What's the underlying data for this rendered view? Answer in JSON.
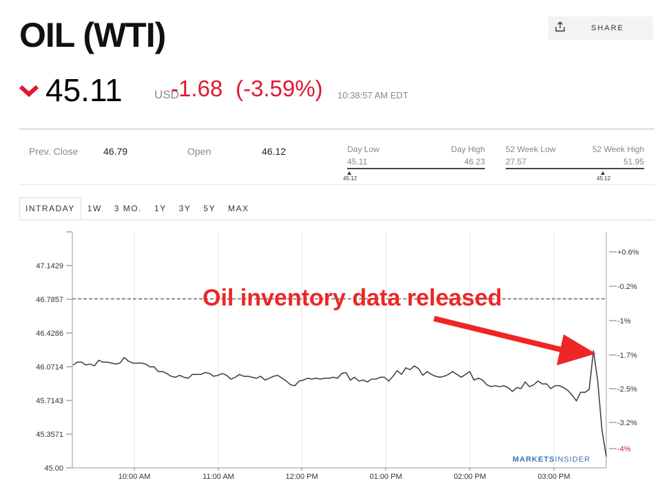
{
  "header": {
    "title": "OIL (WTI)",
    "share_label": "SHARE",
    "share_icon": "share-icon"
  },
  "quote": {
    "direction_icon": "chevron-down-icon",
    "price": "45.11",
    "currency": "USD",
    "change": "-1.68",
    "change_pct": "(-3.59%)",
    "time": "10:38:57 AM EDT",
    "down_color": "#e0182e"
  },
  "stats": {
    "prev_close_label": "Prev. Close",
    "prev_close": "46.79",
    "open_label": "Open",
    "open": "46.12",
    "day_low_label": "Day Low",
    "day_low": "45.11",
    "day_high_label": "Day High",
    "day_high": "46.23",
    "day_marker": "45.12",
    "wk52_low_label": "52 Week Low",
    "wk52_low": "27.57",
    "wk52_high_label": "52 Week High",
    "wk52_high": "51.95",
    "wk52_marker": "45.12"
  },
  "tabs": [
    "INTRADAY",
    "1W",
    "3 MO.",
    "1Y",
    "3Y",
    "5Y",
    "MAX"
  ],
  "annotation": "Oil inventory data released",
  "brand": {
    "part1": "MARKETS",
    "part2": "INSIDER"
  },
  "chart_data": {
    "type": "line",
    "reference_line": 46.79,
    "ylim": [
      45.0,
      47.5
    ],
    "y_ticks": [
      "45.00",
      "45.3571",
      "45.7143",
      "46.0714",
      "46.4286",
      "46.7857",
      "47.1429"
    ],
    "y_tick_values": [
      45.0,
      45.3571,
      45.7143,
      46.0714,
      46.4286,
      46.7857,
      47.1429
    ],
    "right_ticks": [
      "+0.6%",
      "-0.2%",
      "-1%",
      "-1.7%",
      "-2.5%",
      "-3.2%",
      "-4%"
    ],
    "x_ticks": [
      "10:00 AM",
      "11:00 AM",
      "12:00 PM",
      "01:00 PM",
      "02:00 PM",
      "03:00 PM"
    ],
    "series": [
      {
        "values": [
          46.09,
          46.12,
          46.12,
          46.09,
          46.1,
          46.08,
          46.14,
          46.12,
          46.12,
          46.11,
          46.1,
          46.11,
          46.17,
          46.13,
          46.11,
          46.11,
          46.11,
          46.1,
          46.07,
          46.07,
          46.02,
          46.02,
          46.0,
          45.97,
          45.96,
          45.98,
          45.96,
          45.95,
          45.99,
          45.99,
          45.99,
          46.01,
          46.0,
          45.97,
          45.98,
          46.0,
          45.98,
          45.94,
          45.96,
          45.99,
          45.97,
          45.97,
          45.96,
          45.95,
          45.97,
          45.93,
          45.95,
          45.97,
          45.98,
          45.95,
          45.92,
          45.88,
          45.87,
          45.92,
          45.93,
          45.95,
          45.94,
          45.95,
          45.94,
          45.95,
          45.95,
          45.96,
          45.95,
          46.0,
          46.01,
          45.93,
          45.96,
          45.92,
          45.93,
          45.91,
          45.94,
          45.94,
          45.96,
          45.96,
          45.92,
          45.97,
          46.03,
          45.99,
          46.06,
          46.04,
          46.08,
          46.05,
          45.98,
          46.02,
          45.99,
          45.97,
          45.96,
          45.97,
          45.99,
          46.02,
          45.99,
          45.96,
          45.99,
          46.02,
          45.93,
          45.95,
          45.93,
          45.88,
          45.86,
          45.87,
          45.86,
          45.87,
          45.85,
          45.81,
          45.85,
          45.84,
          45.91,
          45.86,
          45.88,
          45.92,
          45.89,
          45.89,
          45.84,
          45.87,
          45.87,
          45.85,
          45.82,
          45.77,
          45.71,
          45.8,
          45.8,
          45.83,
          46.24,
          45.92,
          45.4,
          45.12
        ]
      }
    ],
    "colors": {
      "line": "#444444",
      "reference": "#888888",
      "grid": "#e6e6e6",
      "negative_pct": "#e0182e",
      "annotation": "#ee2626"
    }
  }
}
